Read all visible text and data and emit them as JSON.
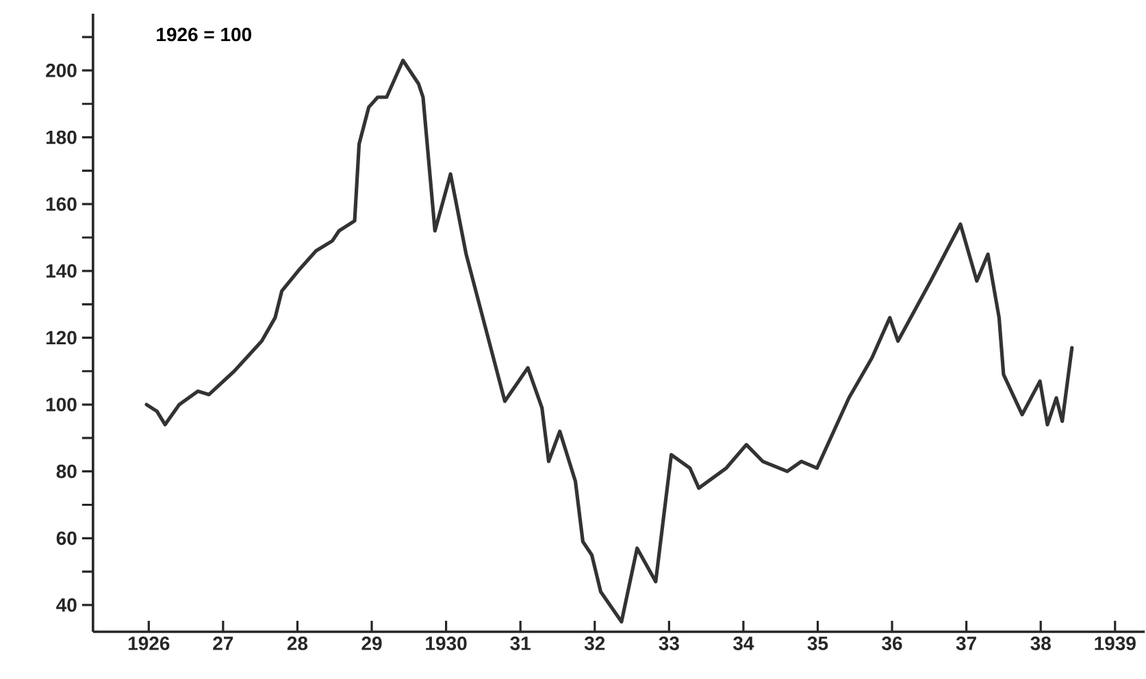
{
  "chart_data": {
    "type": "line",
    "annotations": [
      "1926 = 100"
    ],
    "x": [
      1925.97,
      1926.11,
      1926.22,
      1926.41,
      1926.66,
      1926.81,
      1927.15,
      1927.52,
      1927.7,
      1927.79,
      1928.01,
      1928.25,
      1928.47,
      1928.56,
      1928.77,
      1928.83,
      1928.96,
      1929.08,
      1929.2,
      1929.42,
      1929.63,
      1929.69,
      1929.85,
      1930.06,
      1930.27,
      1930.79,
      1931.1,
      1931.29,
      1931.38,
      1931.53,
      1931.74,
      1931.84,
      1931.96,
      1932.08,
      1932.36,
      1932.57,
      1932.82,
      1933.03,
      1933.28,
      1933.4,
      1933.77,
      1934.04,
      1934.26,
      1934.59,
      1934.78,
      1934.99,
      1935.42,
      1935.73,
      1935.97,
      1936.08,
      1936.52,
      1936.92,
      1937.14,
      1937.29,
      1937.44,
      1937.5,
      1937.75,
      1937.99,
      1938.09,
      1938.21,
      1938.29,
      1938.42
    ],
    "series": [
      {
        "color": "#333333",
        "values": [
          100,
          98,
          94,
          100,
          104,
          103,
          110,
          119,
          126,
          134,
          140,
          146,
          149,
          152,
          155,
          178,
          189,
          192,
          192,
          203,
          196,
          192,
          152,
          169,
          145,
          101,
          111,
          99,
          83,
          92,
          77,
          59,
          55,
          44,
          35,
          57,
          47,
          85,
          81,
          75,
          81,
          88,
          83,
          80,
          83,
          81,
          102,
          114,
          126,
          119,
          137,
          154,
          137,
          145,
          126,
          109,
          97,
          107,
          94,
          102,
          95,
          117
        ]
      }
    ],
    "xlim": [
      1925.25,
      1939.4
    ],
    "xticks": [
      {
        "value": 1926,
        "label": "1926"
      },
      {
        "value": 1927,
        "label": "27"
      },
      {
        "value": 1928,
        "label": "28"
      },
      {
        "value": 1929,
        "label": "29"
      },
      {
        "value": 1930,
        "label": "1930"
      },
      {
        "value": 1931,
        "label": "31"
      },
      {
        "value": 1932,
        "label": "32"
      },
      {
        "value": 1933,
        "label": "33"
      },
      {
        "value": 1934,
        "label": "34"
      },
      {
        "value": 1935,
        "label": "35"
      },
      {
        "value": 1936,
        "label": "36"
      },
      {
        "value": 1937,
        "label": "37"
      },
      {
        "value": 1938,
        "label": "38"
      },
      {
        "value": 1939,
        "label": "1939"
      }
    ],
    "ylim": [
      32,
      217
    ],
    "yticks": [
      40,
      {
        "value": 50,
        "label": null
      },
      60,
      {
        "value": 70,
        "label": null
      },
      80,
      {
        "value": 90,
        "label": null
      },
      100,
      {
        "value": 110,
        "label": null
      },
      120,
      {
        "value": 130,
        "label": null
      },
      140,
      {
        "value": 150,
        "label": null
      },
      160,
      {
        "value": 170,
        "label": null
      },
      180,
      {
        "value": 190,
        "label": null
      },
      200,
      {
        "value": 210,
        "label": null
      }
    ],
    "grid": false,
    "marker": "none",
    "line_style": "solid"
  }
}
